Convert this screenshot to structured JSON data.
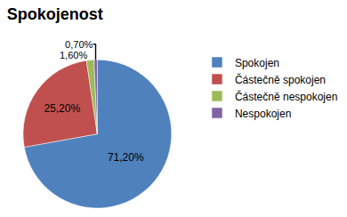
{
  "chart_data": {
    "type": "pie",
    "title": "Spokojenost",
    "categories": [
      "Spokojen",
      "Částečně spokojen",
      "Částečně nespokojen",
      "Nespokojen"
    ],
    "values": [
      71.2,
      25.2,
      1.6,
      0.7
    ],
    "value_labels": [
      "71,20%",
      "25,20%",
      "1,60%",
      "0,70%"
    ],
    "colors": [
      "#4f81bd",
      "#c0504d",
      "#9bbb59",
      "#8064a2"
    ],
    "data_labels": true,
    "legend": "right"
  }
}
